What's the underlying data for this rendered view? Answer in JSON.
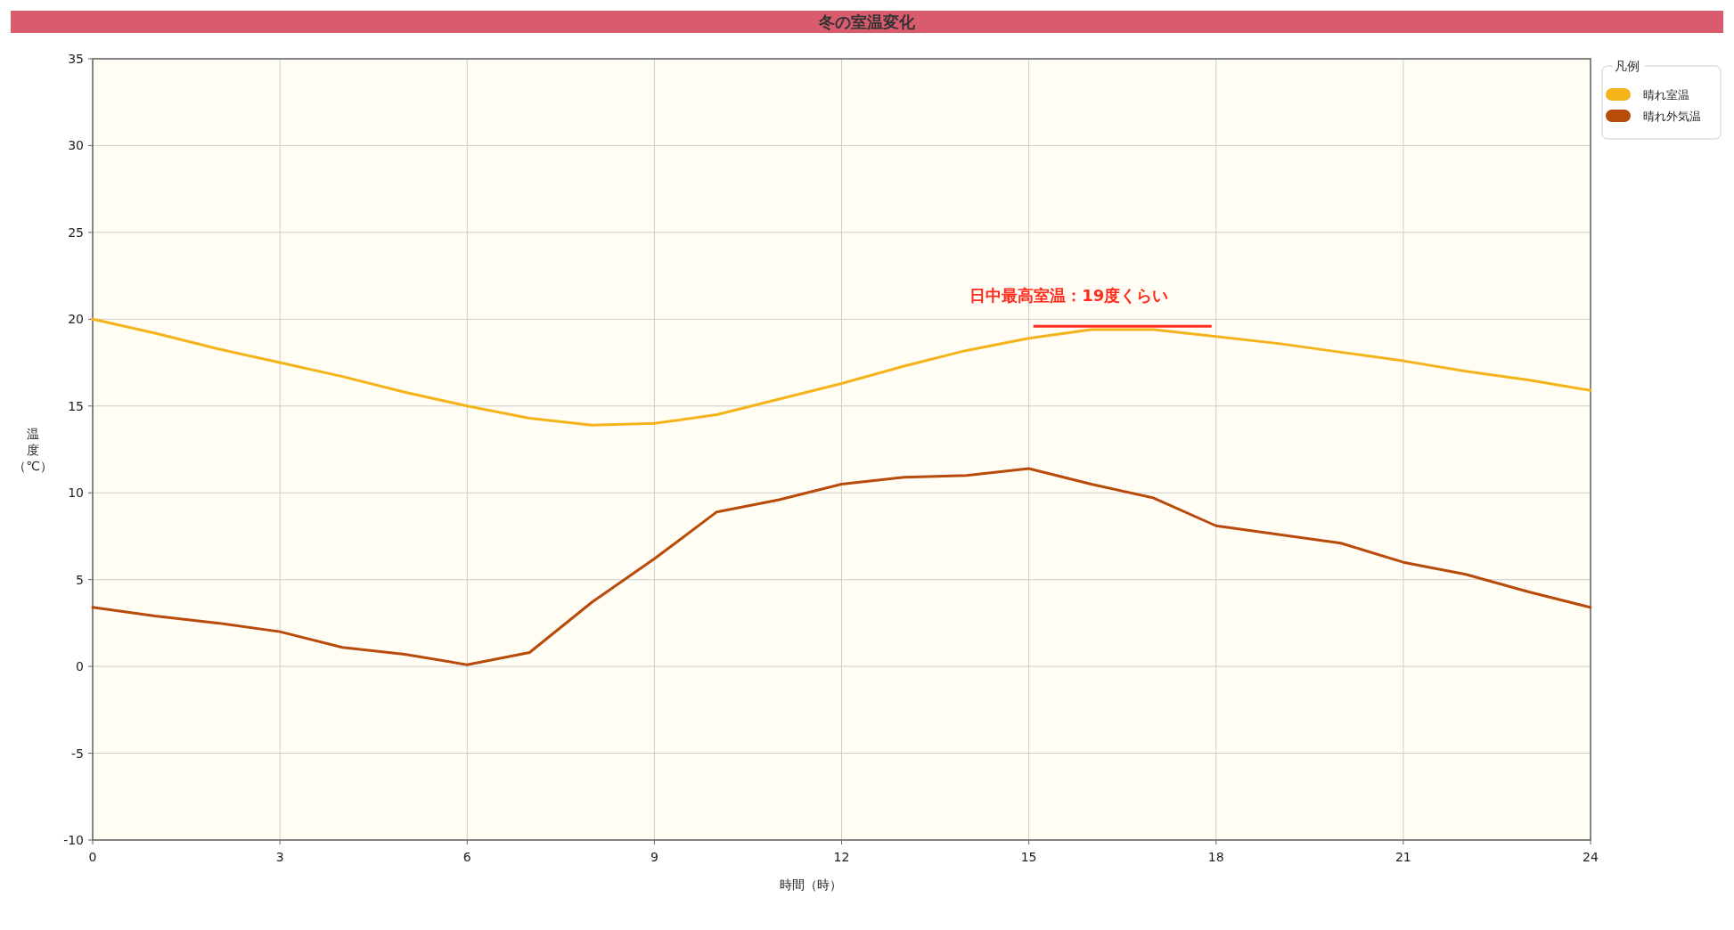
{
  "chart_data": {
    "type": "line",
    "title": "冬の室温変化",
    "xlabel": "時間（時）",
    "ylabel": "温度（℃）",
    "legend_title": "凡例",
    "x": [
      0,
      1,
      2,
      3,
      4,
      5,
      6,
      7,
      8,
      9,
      10,
      11,
      12,
      13,
      14,
      15,
      16,
      17,
      18,
      19,
      20,
      21,
      22,
      23,
      24
    ],
    "series": [
      {
        "name": "晴れ室温",
        "color": "#f5b31a",
        "values": [
          20,
          19.2,
          18.3,
          17.5,
          16.7,
          15.8,
          15,
          14.3,
          13.9,
          14,
          14.5,
          15.4,
          16.3,
          17.3,
          18.2,
          18.9,
          19.4,
          19.4,
          19,
          18.6,
          18.1,
          17.6,
          17,
          16.5,
          15.9
        ]
      },
      {
        "name": "晴れ外気温",
        "color": "#b84a0a",
        "values": [
          3.4,
          2.9,
          2.5,
          2,
          1.1,
          0.7,
          0.1,
          0.8,
          3.7,
          6.2,
          8.9,
          9.6,
          10.5,
          10.9,
          11,
          11.4,
          10.5,
          9.7,
          8.1,
          7.6,
          7.1,
          6,
          5.3,
          4.3,
          3.4
        ]
      }
    ],
    "xlim": [
      0,
      24
    ],
    "xticks": [
      0,
      3,
      6,
      9,
      12,
      15,
      18,
      21,
      24
    ],
    "ylim": [
      -10,
      35
    ],
    "yticks": [
      -10,
      -5,
      0,
      5,
      10,
      15,
      20,
      25,
      30,
      35
    ],
    "grid": true,
    "legend": "top right",
    "marker": "none",
    "line_style": "solid",
    "annotations": [
      {
        "text": "日中最高室温：19度くらい",
        "x": 16.5,
        "y": 19.6
      }
    ]
  }
}
